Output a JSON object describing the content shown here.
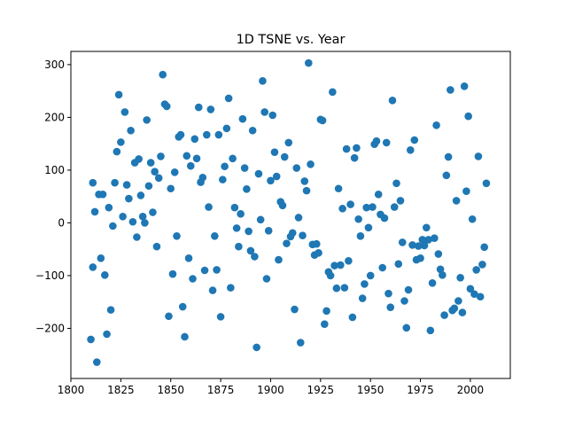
{
  "chart_data": {
    "type": "scatter",
    "title": "1D TSNE vs. Year",
    "xlabel": "",
    "ylabel": "",
    "xlim": [
      1800,
      2020
    ],
    "ylim": [
      -295,
      325
    ],
    "xticks": [
      1800,
      1825,
      1850,
      1875,
      1900,
      1925,
      1950,
      1975,
      2000
    ],
    "yticks": [
      -200,
      -100,
      0,
      100,
      200,
      300
    ],
    "grid": false,
    "legend": "none",
    "marker_color": "#1f77b4",
    "series": [
      {
        "points": [
          [
            1810,
            -221
          ],
          [
            1811,
            76
          ],
          [
            1811,
            -84
          ],
          [
            1812,
            21
          ],
          [
            1813,
            -264
          ],
          [
            1814,
            54
          ],
          [
            1815,
            -67
          ],
          [
            1816,
            54
          ],
          [
            1817,
            -99
          ],
          [
            1818,
            -211
          ],
          [
            1819,
            29
          ],
          [
            1820,
            -165
          ],
          [
            1821,
            -6
          ],
          [
            1822,
            76
          ],
          [
            1823,
            135
          ],
          [
            1824,
            243
          ],
          [
            1825,
            153
          ],
          [
            1826,
            12
          ],
          [
            1827,
            210
          ],
          [
            1828,
            72
          ],
          [
            1829,
            46
          ],
          [
            1830,
            175
          ],
          [
            1831,
            2
          ],
          [
            1832,
            114
          ],
          [
            1833,
            -27
          ],
          [
            1834,
            121
          ],
          [
            1835,
            52
          ],
          [
            1836,
            12
          ],
          [
            1837,
            0
          ],
          [
            1838,
            195
          ],
          [
            1839,
            70
          ],
          [
            1840,
            114
          ],
          [
            1841,
            20
          ],
          [
            1842,
            97
          ],
          [
            1843,
            -45
          ],
          [
            1844,
            85
          ],
          [
            1845,
            126
          ],
          [
            1846,
            281
          ],
          [
            1847,
            225
          ],
          [
            1848,
            221
          ],
          [
            1849,
            -177
          ],
          [
            1850,
            65
          ],
          [
            1851,
            -97
          ],
          [
            1852,
            96
          ],
          [
            1853,
            -25
          ],
          [
            1854,
            163
          ],
          [
            1855,
            167
          ],
          [
            1856,
            -159
          ],
          [
            1857,
            -216
          ],
          [
            1858,
            127
          ],
          [
            1859,
            -67
          ],
          [
            1860,
            108
          ],
          [
            1861,
            -106
          ],
          [
            1862,
            159
          ],
          [
            1863,
            122
          ],
          [
            1864,
            219
          ],
          [
            1865,
            77
          ],
          [
            1866,
            86
          ],
          [
            1867,
            -90
          ],
          [
            1868,
            167
          ],
          [
            1869,
            30
          ],
          [
            1870,
            215
          ],
          [
            1871,
            -128
          ],
          [
            1872,
            -25
          ],
          [
            1873,
            -89
          ],
          [
            1874,
            167
          ],
          [
            1875,
            -178
          ],
          [
            1876,
            82
          ],
          [
            1877,
            107
          ],
          [
            1878,
            179
          ],
          [
            1879,
            236
          ],
          [
            1880,
            -123
          ],
          [
            1881,
            122
          ],
          [
            1882,
            29
          ],
          [
            1883,
            -10
          ],
          [
            1884,
            -45
          ],
          [
            1885,
            17
          ],
          [
            1886,
            197
          ],
          [
            1887,
            104
          ],
          [
            1888,
            64
          ],
          [
            1889,
            -16
          ],
          [
            1890,
            -53
          ],
          [
            1891,
            175
          ],
          [
            1892,
            -64
          ],
          [
            1893,
            -236
          ],
          [
            1894,
            93
          ],
          [
            1895,
            6
          ],
          [
            1896,
            269
          ],
          [
            1897,
            210
          ],
          [
            1898,
            -106
          ],
          [
            1899,
            -15
          ],
          [
            1900,
            80
          ],
          [
            1901,
            204
          ],
          [
            1902,
            134
          ],
          [
            1903,
            88
          ],
          [
            1904,
            -70
          ],
          [
            1905,
            40
          ],
          [
            1906,
            33
          ],
          [
            1907,
            125
          ],
          [
            1908,
            -39
          ],
          [
            1909,
            152
          ],
          [
            1910,
            -26
          ],
          [
            1911,
            -19
          ],
          [
            1912,
            -164
          ],
          [
            1913,
            104
          ],
          [
            1914,
            10
          ],
          [
            1915,
            -227
          ],
          [
            1916,
            -24
          ],
          [
            1917,
            79
          ],
          [
            1918,
            61
          ],
          [
            1919,
            303
          ],
          [
            1920,
            111
          ],
          [
            1921,
            -41
          ],
          [
            1922,
            -61
          ],
          [
            1923,
            -40
          ],
          [
            1924,
            -57
          ],
          [
            1925,
            196
          ],
          [
            1926,
            194
          ],
          [
            1927,
            -192
          ],
          [
            1928,
            -167
          ],
          [
            1929,
            -93
          ],
          [
            1930,
            -100
          ],
          [
            1931,
            248
          ],
          [
            1932,
            -81
          ],
          [
            1933,
            -124
          ],
          [
            1934,
            65
          ],
          [
            1935,
            -80
          ],
          [
            1936,
            27
          ],
          [
            1937,
            -123
          ],
          [
            1938,
            140
          ],
          [
            1939,
            -72
          ],
          [
            1940,
            35
          ],
          [
            1941,
            -179
          ],
          [
            1942,
            123
          ],
          [
            1943,
            142
          ],
          [
            1944,
            7
          ],
          [
            1945,
            -25
          ],
          [
            1946,
            -143
          ],
          [
            1947,
            -116
          ],
          [
            1948,
            29
          ],
          [
            1949,
            -9
          ],
          [
            1950,
            -100
          ],
          [
            1951,
            30
          ],
          [
            1952,
            149
          ],
          [
            1953,
            155
          ],
          [
            1954,
            54
          ],
          [
            1955,
            16
          ],
          [
            1956,
            -85
          ],
          [
            1957,
            9
          ],
          [
            1958,
            152
          ],
          [
            1959,
            -134
          ],
          [
            1960,
            -160
          ],
          [
            1961,
            232
          ],
          [
            1962,
            30
          ],
          [
            1963,
            75
          ],
          [
            1964,
            -78
          ],
          [
            1965,
            42
          ],
          [
            1966,
            -37
          ],
          [
            1967,
            -148
          ],
          [
            1968,
            -199
          ],
          [
            1969,
            -127
          ],
          [
            1970,
            138
          ],
          [
            1971,
            -42
          ],
          [
            1972,
            157
          ],
          [
            1973,
            -70
          ],
          [
            1974,
            -44
          ],
          [
            1975,
            -67
          ],
          [
            1976,
            -32
          ],
          [
            1977,
            -43
          ],
          [
            1978,
            -9
          ],
          [
            1979,
            -32
          ],
          [
            1980,
            -204
          ],
          [
            1981,
            -114
          ],
          [
            1982,
            -29
          ],
          [
            1983,
            185
          ],
          [
            1984,
            -59
          ],
          [
            1985,
            -88
          ],
          [
            1986,
            -99
          ],
          [
            1987,
            -175
          ],
          [
            1988,
            90
          ],
          [
            1989,
            125
          ],
          [
            1990,
            252
          ],
          [
            1991,
            -166
          ],
          [
            1992,
            -162
          ],
          [
            1993,
            42
          ],
          [
            1994,
            -148
          ],
          [
            1995,
            -104
          ],
          [
            1996,
            -170
          ],
          [
            1997,
            259
          ],
          [
            1998,
            60
          ],
          [
            1999,
            202
          ],
          [
            2000,
            -125
          ],
          [
            2001,
            7
          ],
          [
            2002,
            -135
          ],
          [
            2003,
            -89
          ],
          [
            2004,
            126
          ],
          [
            2005,
            -140
          ],
          [
            2006,
            -79
          ],
          [
            2007,
            -46
          ],
          [
            2008,
            75
          ]
        ]
      }
    ]
  }
}
